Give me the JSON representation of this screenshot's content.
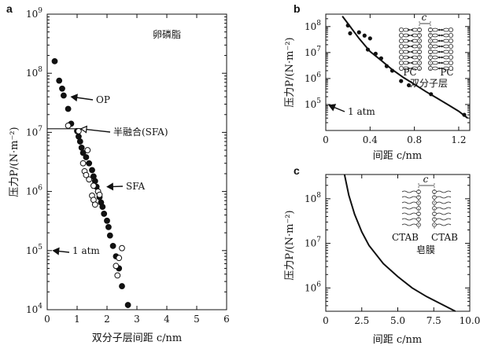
{
  "chart_data": [
    {
      "id": "a",
      "type": "scatter",
      "panel_label": "a",
      "xlabel": "双分子层间距 c/nm",
      "ylabel": "压力P/(N·m⁻²)",
      "xlim": [
        0,
        6
      ],
      "ylim": [
        10000,
        1000000000
      ],
      "yscale": "log",
      "xticks": [
        "0",
        "1",
        "2",
        "3",
        "4",
        "5",
        "6"
      ],
      "yticks": [
        {
          "v": 10000,
          "b": "10",
          "e": "4"
        },
        {
          "v": 100000,
          "b": "10",
          "e": "5"
        },
        {
          "v": 1000000,
          "b": "10",
          "e": "6"
        },
        {
          "v": 10000000,
          "b": "10",
          "e": "7"
        },
        {
          "v": 100000000,
          "b": "10",
          "e": "8"
        },
        {
          "v": 1000000000,
          "b": "10",
          "e": "9"
        }
      ],
      "series": [
        {
          "marker": "filled",
          "points": [
            [
              0.25,
              160000000
            ],
            [
              0.4,
              75000000
            ],
            [
              0.5,
              55000000
            ],
            [
              0.55,
              42000000
            ],
            [
              0.7,
              25000000
            ],
            [
              0.8,
              14000000
            ],
            [
              1.0,
              10500000
            ],
            [
              1.05,
              8500000
            ],
            [
              1.1,
              7000000
            ],
            [
              1.15,
              5500000
            ],
            [
              1.2,
              4500000
            ],
            [
              1.3,
              3800000
            ],
            [
              1.4,
              3000000
            ],
            [
              1.5,
              2300000
            ],
            [
              1.55,
              1800000
            ],
            [
              1.6,
              1500000
            ],
            [
              1.65,
              1200000
            ],
            [
              1.7,
              1000000
            ],
            [
              1.75,
              800000
            ],
            [
              1.8,
              650000
            ],
            [
              1.85,
              550000
            ],
            [
              1.9,
              420000
            ],
            [
              2.0,
              320000
            ],
            [
              2.05,
              250000
            ],
            [
              2.1,
              180000
            ],
            [
              2.2,
              120000
            ],
            [
              2.3,
              80000
            ],
            [
              2.4,
              50000
            ],
            [
              2.5,
              25000
            ],
            [
              2.7,
              12000
            ]
          ]
        },
        {
          "marker": "open",
          "points": [
            [
              0.7,
              13000000
            ],
            [
              1.05,
              10500000
            ],
            [
              1.35,
              5000000
            ],
            [
              1.2,
              3000000
            ],
            [
              1.25,
              2200000
            ],
            [
              1.3,
              1900000
            ],
            [
              1.4,
              1600000
            ],
            [
              1.55,
              1250000
            ],
            [
              1.7,
              1000000
            ],
            [
              1.75,
              880000
            ],
            [
              1.5,
              850000
            ],
            [
              1.55,
              720000
            ],
            [
              1.6,
              600000
            ],
            [
              2.5,
              110000
            ],
            [
              2.4,
              75000
            ],
            [
              2.3,
              55000
            ],
            [
              2.35,
              38000
            ]
          ]
        }
      ],
      "annotations": [
        {
          "text": "OP",
          "arrow": "filled",
          "at": [
            0.65,
            40000000
          ]
        },
        {
          "text": "半融合(SFA)",
          "arrow": "open",
          "at": [
            1.55,
            11500000
          ]
        },
        {
          "text": "SFA",
          "arrow": "filled",
          "at": [
            1.85,
            1200000
          ]
        },
        {
          "text": "1 atm",
          "arrow": "filled",
          "at": [
            0.2,
            100000
          ]
        }
      ],
      "inset_label": "卵磷脂",
      "pressure_line_at": 11500000
    },
    {
      "id": "b",
      "type": "scatter",
      "panel_label": "b",
      "xlabel": "间距 c/nm",
      "ylabel": "压力P/(N·m⁻²)",
      "xlim": [
        0,
        1.3
      ],
      "ylim": [
        10000,
        300000000
      ],
      "yscale": "log",
      "xticks": [
        "0",
        "0.4",
        "0.8",
        "1.2"
      ],
      "yticks": [
        {
          "v": 100000,
          "b": "10",
          "e": "5"
        },
        {
          "v": 1000000,
          "b": "10",
          "e": "6"
        },
        {
          "v": 10000000,
          "b": "10",
          "e": "7"
        },
        {
          "v": 100000000,
          "b": "10",
          "e": "8"
        }
      ],
      "points": [
        [
          0.2,
          110000000
        ],
        [
          0.22,
          55000000
        ],
        [
          0.3,
          60000000
        ],
        [
          0.35,
          45000000
        ],
        [
          0.4,
          35000000
        ],
        [
          0.38,
          13000000
        ],
        [
          0.45,
          9000000
        ],
        [
          0.5,
          6000000
        ],
        [
          0.55,
          3000000
        ],
        [
          0.6,
          2000000
        ],
        [
          0.68,
          800000
        ],
        [
          0.75,
          550000
        ],
        [
          0.95,
          250000
        ],
        [
          1.25,
          40000
        ]
      ],
      "fit_curve": [
        [
          0.15,
          250000000
        ],
        [
          0.2,
          130000000
        ],
        [
          0.3,
          35000000
        ],
        [
          0.4,
          11000000
        ],
        [
          0.5,
          5000000
        ],
        [
          0.6,
          2200000
        ],
        [
          0.7,
          1100000
        ],
        [
          0.8,
          600000
        ],
        [
          0.9,
          320000
        ],
        [
          1.0,
          180000
        ],
        [
          1.1,
          100000
        ],
        [
          1.2,
          55000
        ],
        [
          1.28,
          30000
        ]
      ],
      "annotations": [
        {
          "text": "1 atm",
          "arrow": "filled",
          "at": [
            0.03,
            100000
          ]
        }
      ],
      "inset_labels": [
        "c",
        "PC",
        "PC",
        "双分子层"
      ]
    },
    {
      "id": "c",
      "type": "line",
      "panel_label": "c",
      "xlabel": "间距 c/nm",
      "ylabel": "压力P/(N·m⁻²)",
      "xlim": [
        0,
        10
      ],
      "ylim": [
        300000,
        350000000
      ],
      "yscale": "log",
      "xticks": [
        "0",
        "2.5",
        "5.0",
        "7.5",
        "10.0"
      ],
      "yticks": [
        {
          "v": 1000000,
          "b": "10",
          "e": "6"
        },
        {
          "v": 10000000,
          "b": "10",
          "e": "7"
        },
        {
          "v": 100000000,
          "b": "10",
          "e": "8"
        }
      ],
      "curve": [
        [
          1.3,
          350000000
        ],
        [
          1.6,
          120000000
        ],
        [
          2.0,
          45000000
        ],
        [
          2.5,
          18000000
        ],
        [
          3.0,
          9000000
        ],
        [
          4.0,
          3500000
        ],
        [
          5.0,
          1800000
        ],
        [
          6.0,
          1000000
        ],
        [
          7.0,
          640000
        ],
        [
          8.0,
          440000
        ],
        [
          9.0,
          300000
        ]
      ],
      "inset_labels": [
        "c",
        "CTAB",
        "CTAB",
        "皂膜"
      ]
    }
  ]
}
